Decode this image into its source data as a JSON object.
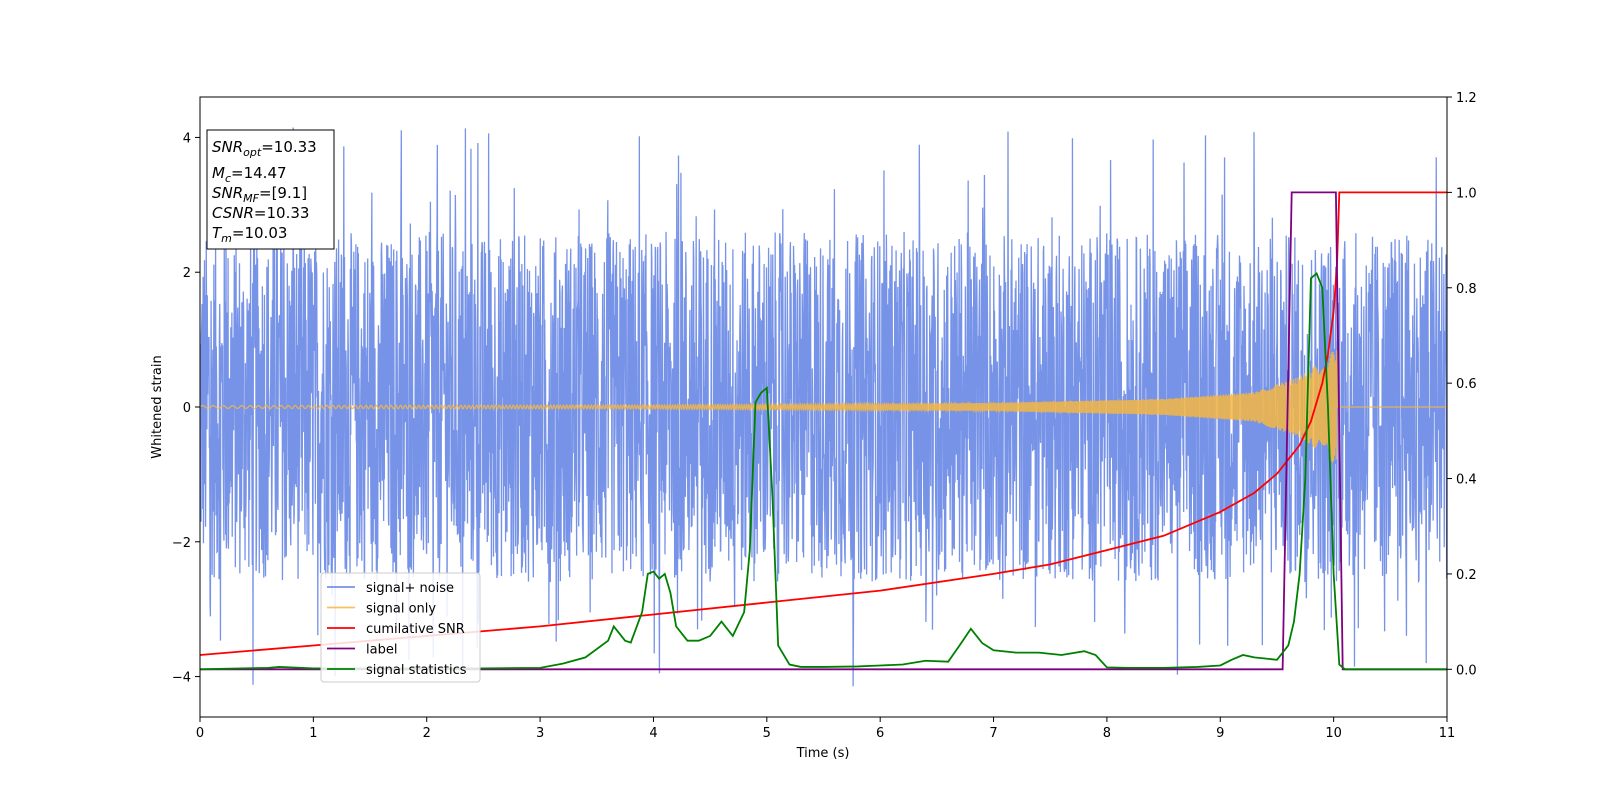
{
  "chart_data": {
    "type": "line",
    "xlabel": "Time (s)",
    "ylabel": "Whitened strain",
    "xlim": [
      0,
      11
    ],
    "ylim_left": [
      -4.6,
      4.6
    ],
    "ylim_right": [
      -0.1,
      1.2
    ],
    "x_ticks": [
      0,
      1,
      2,
      3,
      4,
      5,
      6,
      7,
      8,
      9,
      10,
      11
    ],
    "y_ticks_left": [
      -4,
      -2,
      0,
      2,
      4
    ],
    "y_ticks_right": [
      0.0,
      0.2,
      0.4,
      0.6,
      0.8,
      1.0,
      1.2
    ],
    "legend_position": "lower-left",
    "colors": {
      "noise": "#4a6fe0",
      "signal": "#f5b642",
      "cumulative_snr": "#ff0000",
      "label": "#800080",
      "statistics": "#008000"
    },
    "info_box": {
      "snr_opt": {
        "base": "SNR",
        "sub": "opt",
        "value": "=10.33"
      },
      "mc": {
        "base": "M",
        "sub": "c",
        "value": "=14.47"
      },
      "snr_mf": {
        "base": "SNR",
        "sub": "MF",
        "value": "=[9.1]"
      },
      "csnr": {
        "base": "CSNR",
        "value": "=10.33"
      },
      "tm": {
        "base": "T",
        "sub": "m",
        "value": "=10.03"
      }
    },
    "series": [
      {
        "name": "signal+ noise",
        "axis": "left",
        "style": "dense noise, approx. uniform amplitude ±2.5 with spikes to ±4",
        "amplitude_envelope": 2.6,
        "max_spike": 4.15
      },
      {
        "name": "signal only",
        "axis": "left",
        "style": "chirp oscillation",
        "envelope": {
          "t": [
            0,
            4,
            7,
            8.5,
            9.3,
            9.7,
            9.95,
            10.03
          ],
          "amp": [
            0.02,
            0.03,
            0.06,
            0.12,
            0.22,
            0.45,
            0.75,
            0.9
          ]
        },
        "end_time": 10.03
      },
      {
        "name": "cumilative SNR",
        "axis": "right",
        "x": [
          0,
          1,
          2,
          3,
          4,
          5,
          6,
          7,
          7.5,
          8,
          8.5,
          9,
          9.3,
          9.5,
          9.7,
          9.8,
          9.9,
          9.95,
          10.0,
          10.03,
          10.05,
          11
        ],
        "y": [
          0.03,
          0.05,
          0.07,
          0.09,
          0.115,
          0.14,
          0.165,
          0.2,
          0.22,
          0.25,
          0.28,
          0.33,
          0.37,
          0.41,
          0.47,
          0.52,
          0.6,
          0.66,
          0.75,
          0.85,
          1.0,
          1.0
        ]
      },
      {
        "name": "label",
        "axis": "right",
        "x": [
          0,
          9.55,
          9.63,
          10.02,
          10.08,
          11
        ],
        "y": [
          0,
          0,
          1,
          1,
          0,
          0
        ]
      },
      {
        "name": "signal statistics",
        "axis": "right",
        "x": [
          0,
          0.6,
          0.7,
          1.0,
          2.0,
          2.5,
          3.0,
          3.2,
          3.4,
          3.6,
          3.65,
          3.7,
          3.75,
          3.8,
          3.9,
          3.95,
          4.0,
          4.05,
          4.1,
          4.15,
          4.2,
          4.3,
          4.4,
          4.5,
          4.6,
          4.65,
          4.7,
          4.8,
          4.85,
          4.9,
          4.95,
          5.0,
          5.05,
          5.1,
          5.2,
          5.3,
          5.5,
          5.8,
          6.0,
          6.2,
          6.4,
          6.6,
          6.7,
          6.8,
          6.9,
          7.0,
          7.2,
          7.4,
          7.6,
          7.8,
          7.9,
          8.0,
          8.2,
          8.5,
          8.8,
          9.0,
          9.1,
          9.2,
          9.3,
          9.5,
          9.6,
          9.65,
          9.7,
          9.75,
          9.8,
          9.85,
          9.9,
          9.95,
          10.0,
          10.05,
          10.1,
          10.2,
          11
        ],
        "y": [
          0,
          0.003,
          0.005,
          0.002,
          0.002,
          0.002,
          0.003,
          0.012,
          0.025,
          0.06,
          0.09,
          0.075,
          0.06,
          0.056,
          0.12,
          0.2,
          0.205,
          0.19,
          0.2,
          0.16,
          0.09,
          0.06,
          0.06,
          0.07,
          0.1,
          0.085,
          0.07,
          0.12,
          0.25,
          0.56,
          0.58,
          0.59,
          0.36,
          0.05,
          0.01,
          0.005,
          0.005,
          0.006,
          0.008,
          0.01,
          0.018,
          0.016,
          0.05,
          0.085,
          0.055,
          0.04,
          0.035,
          0.035,
          0.03,
          0.038,
          0.03,
          0.004,
          0.003,
          0.003,
          0.005,
          0.008,
          0.02,
          0.03,
          0.025,
          0.02,
          0.05,
          0.1,
          0.2,
          0.4,
          0.82,
          0.83,
          0.8,
          0.55,
          0.2,
          0.01,
          0.0,
          0.0,
          0.0
        ]
      }
    ]
  }
}
